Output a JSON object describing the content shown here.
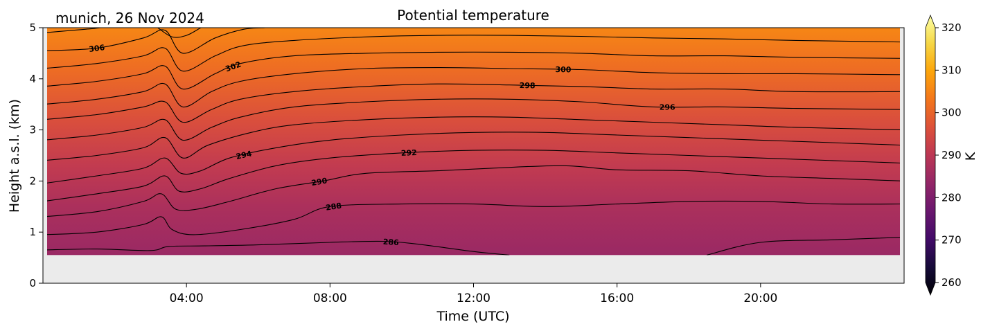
{
  "chart_data": {
    "type": "heatmap",
    "title": "Potential temperature",
    "subtitle": "munich, 26 Nov 2024",
    "xlabel": "Time (UTC)",
    "ylabel": "Height a.s.l. (km)",
    "x_range_hours": [
      0,
      24
    ],
    "xlim_hours": [
      0,
      24
    ],
    "x_ticks": [
      {
        "hour": 4,
        "label": "04:00"
      },
      {
        "hour": 8,
        "label": "08:00"
      },
      {
        "hour": 12,
        "label": "12:00"
      },
      {
        "hour": 16,
        "label": "16:00"
      },
      {
        "hour": 20,
        "label": "20:00"
      }
    ],
    "ylim": [
      0,
      5
    ],
    "y_ticks": [
      {
        "value": 0,
        "label": "0"
      },
      {
        "value": 1,
        "label": "1"
      },
      {
        "value": 2,
        "label": "2"
      },
      {
        "value": 3,
        "label": "3"
      },
      {
        "value": 4,
        "label": "4"
      },
      {
        "value": 5,
        "label": "5"
      }
    ],
    "data_height_min_km": 0.55,
    "colormap": "inferno",
    "colorbar": {
      "label": "K",
      "min": 260,
      "max": 320,
      "ticks": [
        260,
        270,
        280,
        290,
        300,
        310,
        320
      ],
      "extend": "both"
    },
    "contour_interval_K": 2,
    "contours": [
      {
        "theta": 286,
        "label": "286",
        "label_at_hour": 9.7,
        "points": [
          [
            0,
            0.65
          ],
          [
            1.5,
            0.67
          ],
          [
            3.0,
            0.64
          ],
          [
            3.5,
            0.72
          ],
          [
            4.5,
            0.73
          ],
          [
            6,
            0.75
          ],
          [
            8,
            0.8
          ],
          [
            9.5,
            0.82
          ],
          [
            10.5,
            0.76
          ],
          [
            12,
            0.62
          ],
          [
            13,
            0.55
          ]
        ]
      },
      {
        "theta": 286,
        "label": "",
        "label_at_hour": null,
        "points": [
          [
            18.5,
            0.55
          ],
          [
            20,
            0.8
          ],
          [
            22,
            0.85
          ],
          [
            24,
            0.9
          ]
        ]
      },
      {
        "theta": 288,
        "label": "288",
        "label_at_hour": 8.1,
        "points": [
          [
            0,
            0.95
          ],
          [
            1.5,
            1.0
          ],
          [
            2.8,
            1.15
          ],
          [
            3.3,
            1.3
          ],
          [
            3.6,
            1.05
          ],
          [
            4.2,
            0.95
          ],
          [
            5.5,
            1.05
          ],
          [
            7,
            1.25
          ],
          [
            8,
            1.5
          ],
          [
            10,
            1.55
          ],
          [
            12,
            1.55
          ],
          [
            14,
            1.5
          ],
          [
            16,
            1.55
          ],
          [
            18,
            1.6
          ],
          [
            20,
            1.6
          ],
          [
            22,
            1.55
          ],
          [
            24,
            1.55
          ]
        ]
      },
      {
        "theta": 290,
        "label": "290",
        "label_at_hour": 7.7,
        "points": [
          [
            0,
            1.3
          ],
          [
            1.5,
            1.4
          ],
          [
            2.8,
            1.6
          ],
          [
            3.3,
            1.75
          ],
          [
            3.7,
            1.45
          ],
          [
            4.3,
            1.45
          ],
          [
            5.2,
            1.6
          ],
          [
            6.5,
            1.85
          ],
          [
            7.8,
            2.0
          ],
          [
            9,
            2.15
          ],
          [
            11,
            2.2
          ],
          [
            12.5,
            2.25
          ],
          [
            14.5,
            2.3
          ],
          [
            16,
            2.22
          ],
          [
            18,
            2.2
          ],
          [
            20,
            2.1
          ],
          [
            22,
            2.05
          ],
          [
            24,
            2.0
          ]
        ]
      },
      {
        "theta": 292,
        "label": "292",
        "label_at_hour": 10.2,
        "points": [
          [
            0,
            1.6
          ],
          [
            1.5,
            1.75
          ],
          [
            2.8,
            1.9
          ],
          [
            3.4,
            2.1
          ],
          [
            3.8,
            1.8
          ],
          [
            4.4,
            1.85
          ],
          [
            5.2,
            2.05
          ],
          [
            6.5,
            2.3
          ],
          [
            8,
            2.45
          ],
          [
            10,
            2.55
          ],
          [
            12,
            2.6
          ],
          [
            14,
            2.6
          ],
          [
            16,
            2.55
          ],
          [
            18,
            2.5
          ],
          [
            20,
            2.45
          ],
          [
            22,
            2.4
          ],
          [
            24,
            2.35
          ]
        ]
      },
      {
        "theta": 294,
        "label": "294",
        "label_at_hour": 5.6,
        "points": [
          [
            0,
            1.95
          ],
          [
            1.5,
            2.1
          ],
          [
            2.8,
            2.25
          ],
          [
            3.4,
            2.45
          ],
          [
            3.85,
            2.15
          ],
          [
            4.4,
            2.2
          ],
          [
            5.2,
            2.45
          ],
          [
            6.5,
            2.65
          ],
          [
            8,
            2.8
          ],
          [
            10,
            2.9
          ],
          [
            12,
            2.95
          ],
          [
            14,
            2.95
          ],
          [
            16,
            2.9
          ],
          [
            18,
            2.85
          ],
          [
            20,
            2.8
          ],
          [
            22,
            2.75
          ],
          [
            24,
            2.7
          ]
        ]
      },
      {
        "theta": 294,
        "label": "",
        "label_at_hour": null,
        "points": [
          [
            0,
            2.4
          ],
          [
            1.5,
            2.5
          ],
          [
            2.8,
            2.65
          ],
          [
            3.4,
            2.85
          ],
          [
            3.9,
            2.45
          ],
          [
            4.6,
            2.7
          ],
          [
            5.8,
            2.95
          ],
          [
            7,
            3.1
          ],
          [
            9,
            3.2
          ],
          [
            11,
            3.25
          ],
          [
            13,
            3.25
          ],
          [
            15,
            3.2
          ],
          [
            17,
            3.15
          ],
          [
            19,
            3.1
          ],
          [
            21,
            3.05
          ],
          [
            24,
            3.0
          ]
        ]
      },
      {
        "theta": 296,
        "label": "296",
        "label_at_hour": 17.4,
        "points": [
          [
            0,
            2.8
          ],
          [
            1.5,
            2.9
          ],
          [
            2.8,
            3.05
          ],
          [
            3.4,
            3.2
          ],
          [
            3.9,
            2.8
          ],
          [
            4.7,
            3.05
          ],
          [
            5.5,
            3.25
          ],
          [
            7,
            3.45
          ],
          [
            9,
            3.55
          ],
          [
            11,
            3.6
          ],
          [
            13,
            3.6
          ],
          [
            15,
            3.55
          ],
          [
            17,
            3.45
          ],
          [
            19,
            3.45
          ],
          [
            21,
            3.42
          ],
          [
            24,
            3.4
          ]
        ]
      },
      {
        "theta": 298,
        "label": "298",
        "label_at_hour": 13.5,
        "points": [
          [
            0,
            3.2
          ],
          [
            1.5,
            3.3
          ],
          [
            2.8,
            3.45
          ],
          [
            3.4,
            3.55
          ],
          [
            3.9,
            3.15
          ],
          [
            4.7,
            3.4
          ],
          [
            5.5,
            3.6
          ],
          [
            7,
            3.75
          ],
          [
            9,
            3.85
          ],
          [
            11,
            3.9
          ],
          [
            13,
            3.88
          ],
          [
            15,
            3.85
          ],
          [
            17,
            3.8
          ],
          [
            19,
            3.8
          ],
          [
            21,
            3.75
          ],
          [
            24,
            3.75
          ]
        ]
      },
      {
        "theta": 300,
        "label": "300",
        "label_at_hour": 14.5,
        "points": [
          [
            0,
            3.5
          ],
          [
            1.5,
            3.6
          ],
          [
            2.8,
            3.75
          ],
          [
            3.4,
            3.9
          ],
          [
            3.9,
            3.45
          ],
          [
            4.7,
            3.75
          ],
          [
            5.5,
            3.95
          ],
          [
            7,
            4.1
          ],
          [
            9,
            4.2
          ],
          [
            11,
            4.22
          ],
          [
            13,
            4.2
          ],
          [
            15,
            4.18
          ],
          [
            17,
            4.12
          ],
          [
            19,
            4.1
          ],
          [
            21,
            4.1
          ],
          [
            24,
            4.08
          ]
        ]
      },
      {
        "theta": 302,
        "label": "302",
        "label_at_hour": 5.3,
        "points": [
          [
            0,
            3.85
          ],
          [
            1.5,
            3.95
          ],
          [
            2.8,
            4.1
          ],
          [
            3.4,
            4.25
          ],
          [
            3.9,
            3.8
          ],
          [
            4.8,
            4.1
          ],
          [
            5.5,
            4.3
          ],
          [
            7,
            4.45
          ],
          [
            9,
            4.5
          ],
          [
            11,
            4.52
          ],
          [
            13,
            4.52
          ],
          [
            15,
            4.5
          ],
          [
            17,
            4.45
          ],
          [
            19,
            4.45
          ],
          [
            21,
            4.42
          ],
          [
            24,
            4.4
          ]
        ]
      },
      {
        "theta": 304,
        "label": "",
        "label_at_hour": null,
        "points": [
          [
            0,
            4.2
          ],
          [
            1.5,
            4.3
          ],
          [
            2.8,
            4.45
          ],
          [
            3.4,
            4.6
          ],
          [
            3.9,
            4.15
          ],
          [
            4.8,
            4.45
          ],
          [
            5.6,
            4.65
          ],
          [
            7,
            4.75
          ],
          [
            9,
            4.82
          ],
          [
            11,
            4.85
          ],
          [
            13,
            4.85
          ],
          [
            15,
            4.83
          ],
          [
            17,
            4.8
          ],
          [
            19,
            4.78
          ],
          [
            21,
            4.75
          ],
          [
            24,
            4.72
          ]
        ]
      },
      {
        "theta": 306,
        "label": "306",
        "label_at_hour": 1.5,
        "points": [
          [
            0,
            4.55
          ],
          [
            1.5,
            4.6
          ],
          [
            2.8,
            4.8
          ],
          [
            3.4,
            4.95
          ],
          [
            3.9,
            4.5
          ],
          [
            4.8,
            4.8
          ],
          [
            5.6,
            4.97
          ],
          [
            6.2,
            5.0
          ]
        ]
      },
      {
        "theta": 308,
        "label": "",
        "label_at_hour": null,
        "points": [
          [
            0,
            4.9
          ],
          [
            1.2,
            4.97
          ],
          [
            1.6,
            5.0
          ]
        ]
      },
      {
        "theta": 308,
        "label": "",
        "label_at_hour": null,
        "points": [
          [
            3.2,
            5.0
          ],
          [
            3.6,
            4.82
          ],
          [
            4.0,
            4.85
          ],
          [
            4.4,
            5.0
          ]
        ]
      }
    ],
    "field_vertical_profile": [
      {
        "height_km": 0.55,
        "theta_K": 285
      },
      {
        "height_km": 1.5,
        "theta_K": 287.5
      },
      {
        "height_km": 2.3,
        "theta_K": 291
      },
      {
        "height_km": 3.2,
        "theta_K": 295.5
      },
      {
        "height_km": 4.2,
        "theta_K": 300.5
      },
      {
        "height_km": 5.0,
        "theta_K": 304
      }
    ]
  }
}
